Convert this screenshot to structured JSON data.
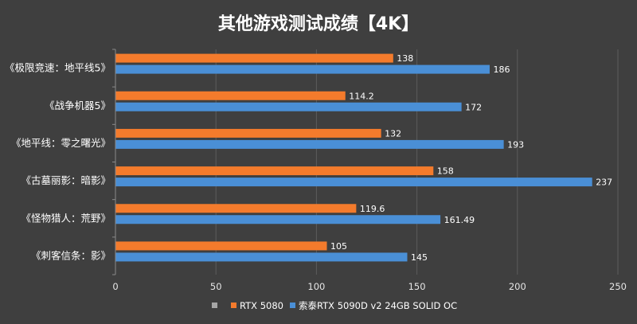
{
  "chart_data": {
    "type": "bar",
    "orientation": "horizontal",
    "title": "其他游戏测试成绩【4K】",
    "categories": [
      "《极限竞速：地平线5》",
      "《战争机器5》",
      "《地平线：零之曙光》",
      "《古墓丽影：暗影》",
      "《怪物猎人：荒野》",
      "《刺客信条：影》"
    ],
    "series": [
      {
        "name": "RTX 5080",
        "color": "#f47b2c",
        "values": [
          138,
          114.2,
          132,
          158,
          119.6,
          105
        ]
      },
      {
        "name": "索泰RTX 5090D v2 24GB SOLID OC",
        "color": "#4a8fd6",
        "values": [
          186,
          172,
          193,
          237,
          161.49,
          145
        ]
      }
    ],
    "value_labels": [
      [
        "138",
        "114.2",
        "132",
        "158",
        "119.6",
        "105"
      ],
      [
        "186",
        "172",
        "193",
        "237",
        "161.49",
        "145"
      ]
    ],
    "xlim": [
      0,
      250
    ],
    "xticks": [
      0,
      50,
      100,
      150,
      200,
      250
    ],
    "grid": true,
    "legend_position": "bottom",
    "legend_extra_marker_color": "#a6a6a6"
  }
}
